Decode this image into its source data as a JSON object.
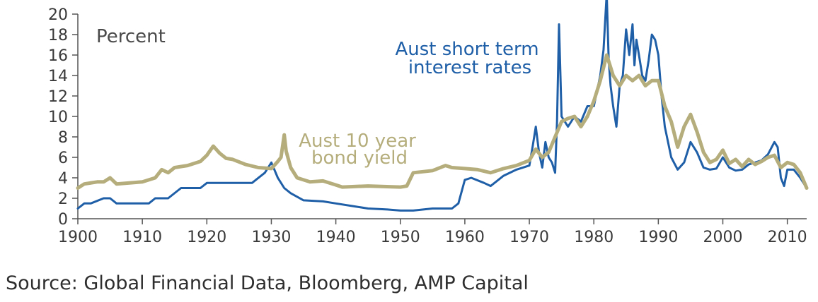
{
  "chart_data": {
    "type": "line",
    "ylabel": "Percent",
    "xlim": [
      1900,
      2013
    ],
    "ylim": [
      0,
      20
    ],
    "x_ticks": [
      1900,
      1910,
      1920,
      1930,
      1940,
      1950,
      1960,
      1970,
      1980,
      1990,
      2000,
      2010
    ],
    "y_ticks": [
      0,
      2,
      4,
      6,
      8,
      10,
      12,
      14,
      16,
      18,
      20
    ],
    "grid": false,
    "legend": "none (series labelled directly)",
    "series": [
      {
        "name": "Aust short term interest rates",
        "color": "#1f5fa8",
        "x": [
          1900,
          1901,
          1902,
          1904,
          1905,
          1906,
          1910,
          1911,
          1912,
          1914,
          1916,
          1919,
          1920,
          1927,
          1929,
          1930,
          1931,
          1932,
          1933,
          1935,
          1938,
          1940,
          1943,
          1945,
          1948,
          1950,
          1952,
          1955,
          1958,
          1959,
          1960,
          1961,
          1963,
          1964,
          1966,
          1968,
          1970,
          1970.5,
          1971,
          1971.5,
          1972,
          1972.5,
          1973,
          1973.5,
          1974,
          1974.3,
          1974.6,
          1975,
          1976,
          1977,
          1978,
          1979,
          1980,
          1980.5,
          1981,
          1981.5,
          1982,
          1982.3,
          1982.6,
          1983,
          1983.5,
          1984,
          1984.5,
          1985,
          1985.5,
          1986,
          1986.3,
          1986.6,
          1987,
          1987.5,
          1988,
          1988.5,
          1989,
          1989.5,
          1990,
          1990.5,
          1991,
          1992,
          1993,
          1994,
          1995,
          1996,
          1997,
          1998,
          1999,
          2000,
          2001,
          2002,
          2003,
          2004,
          2005,
          2006,
          2007,
          2008,
          2008.5,
          2009,
          2009.5,
          2010,
          2011,
          2012,
          2013
        ],
        "y": [
          1.0,
          1.5,
          1.5,
          2.0,
          2.0,
          1.5,
          1.5,
          1.5,
          2.0,
          2.0,
          3.0,
          3.0,
          3.5,
          3.5,
          4.5,
          5.5,
          4.0,
          3.0,
          2.5,
          1.8,
          1.7,
          1.5,
          1.2,
          1.0,
          0.9,
          0.8,
          0.8,
          1.0,
          1.0,
          1.5,
          3.8,
          4.0,
          3.5,
          3.2,
          4.2,
          4.8,
          5.2,
          7.0,
          9.0,
          6.5,
          5.0,
          7.5,
          6.0,
          5.5,
          4.5,
          9.5,
          19.0,
          10.0,
          9.0,
          10.0,
          9.5,
          11.0,
          11.0,
          12.5,
          14.0,
          16.5,
          22.0,
          15.5,
          13.0,
          11.0,
          9.0,
          13.0,
          14.0,
          18.5,
          16.0,
          19.0,
          15.0,
          17.5,
          16.0,
          14.0,
          13.5,
          15.5,
          18.0,
          17.5,
          16.0,
          12.0,
          9.0,
          6.0,
          4.8,
          5.5,
          7.5,
          6.5,
          5.0,
          4.8,
          4.9,
          6.0,
          5.0,
          4.7,
          4.8,
          5.3,
          5.5,
          5.7,
          6.3,
          7.5,
          7.0,
          4.0,
          3.2,
          4.8,
          4.8,
          4.0,
          3.0
        ]
      },
      {
        "name": "Aust 10 year bond yield",
        "color": "#b5ae7c",
        "x": [
          1900,
          1901,
          1903,
          1904,
          1905,
          1906,
          1908,
          1910,
          1912,
          1913,
          1914,
          1915,
          1917,
          1919,
          1920,
          1921,
          1922,
          1923,
          1924,
          1926,
          1928,
          1930,
          1931,
          1931.5,
          1932,
          1932.3,
          1933,
          1934,
          1936,
          1938,
          1940,
          1941,
          1945,
          1950,
          1951,
          1952,
          1955,
          1957,
          1958,
          1960,
          1962,
          1964,
          1966,
          1968,
          1970,
          1971,
          1972,
          1973,
          1974,
          1975,
          1976,
          1977,
          1978,
          1979,
          1980,
          1981,
          1982,
          1982.5,
          1983,
          1984,
          1985,
          1986,
          1987,
          1988,
          1989,
          1990,
          1991,
          1992,
          1993,
          1994,
          1995,
          1996,
          1997,
          1998,
          1999,
          2000,
          2001,
          2002,
          2003,
          2004,
          2005,
          2006,
          2007,
          2008,
          2009,
          2010,
          2011,
          2012,
          2013
        ],
        "y": [
          3.0,
          3.4,
          3.6,
          3.6,
          4.0,
          3.4,
          3.5,
          3.6,
          4.0,
          4.8,
          4.5,
          5.0,
          5.2,
          5.6,
          6.2,
          7.1,
          6.4,
          5.9,
          5.8,
          5.3,
          5.0,
          4.9,
          5.6,
          6.0,
          8.2,
          6.6,
          5.0,
          4.0,
          3.6,
          3.7,
          3.3,
          3.1,
          3.2,
          3.1,
          3.2,
          4.5,
          4.7,
          5.2,
          5.0,
          4.9,
          4.8,
          4.5,
          4.9,
          5.2,
          5.7,
          6.8,
          6.0,
          6.5,
          8.0,
          9.5,
          9.8,
          10.0,
          9.0,
          10.0,
          11.5,
          13.5,
          16.0,
          15.0,
          14.0,
          13.0,
          14.0,
          13.5,
          14.0,
          13.0,
          13.5,
          13.5,
          11.0,
          9.5,
          7.0,
          9.0,
          10.2,
          8.5,
          6.5,
          5.5,
          5.8,
          6.7,
          5.4,
          5.8,
          5.1,
          5.8,
          5.3,
          5.6,
          6.0,
          6.2,
          5.0,
          5.5,
          5.3,
          4.5,
          3.0
        ]
      }
    ]
  },
  "annotations": {
    "short_rate_line1": "Aust short term",
    "short_rate_line2": "interest rates",
    "bond_line1": "Aust 10 year",
    "bond_line2": "bond yield"
  },
  "source": "Source: Global Financial Data, Bloomberg, AMP Capital"
}
